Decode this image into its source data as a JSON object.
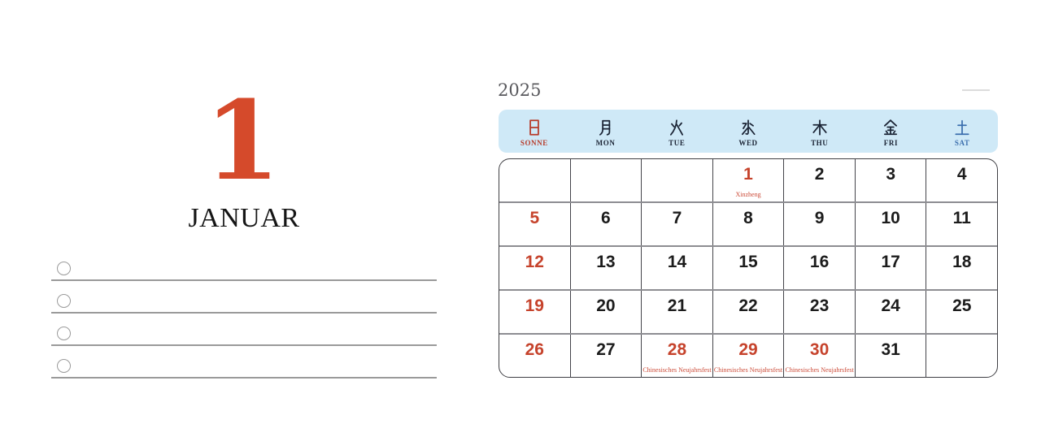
{
  "theme": {
    "accent_red": "#d54a2b",
    "day_red": "#c6432c",
    "holiday_red": "#cc4b38",
    "ink_black": "#1c1c1c",
    "header_navy": "#1b2435",
    "sunday_red": "#b73b2a",
    "saturday_blue": "#3c6fae",
    "band_blue": "#cfe9f7",
    "grid_dark": "#3f3f44",
    "grid_gray": "#8d8d92",
    "checklist_gray": "#9a9a9a",
    "year_gray": "#58585c"
  },
  "left_page": {
    "month_number": "1",
    "month_name": "JANUAR",
    "checklist_items": [
      "",
      "",
      "",
      ""
    ]
  },
  "calendar": {
    "year": "2025",
    "weekdays": [
      {
        "kanji": "日",
        "label": "SONNE"
      },
      {
        "kanji": "月",
        "label": "MON"
      },
      {
        "kanji": "火",
        "label": "TUE"
      },
      {
        "kanji": "水",
        "label": "WED"
      },
      {
        "kanji": "木",
        "label": "THU"
      },
      {
        "kanji": "金",
        "label": "FRI"
      },
      {
        "kanji": "土",
        "label": "SAT"
      }
    ],
    "weeks": [
      [
        {
          "day": ""
        },
        {
          "day": ""
        },
        {
          "day": ""
        },
        {
          "day": "1",
          "holiday": "Xinzheng"
        },
        {
          "day": "2"
        },
        {
          "day": "3"
        },
        {
          "day": "4"
        }
      ],
      [
        {
          "day": "5"
        },
        {
          "day": "6"
        },
        {
          "day": "7"
        },
        {
          "day": "8"
        },
        {
          "day": "9"
        },
        {
          "day": "10"
        },
        {
          "day": "11"
        }
      ],
      [
        {
          "day": "12"
        },
        {
          "day": "13"
        },
        {
          "day": "14"
        },
        {
          "day": "15"
        },
        {
          "day": "16"
        },
        {
          "day": "17"
        },
        {
          "day": "18"
        }
      ],
      [
        {
          "day": "19"
        },
        {
          "day": "20"
        },
        {
          "day": "21"
        },
        {
          "day": "22"
        },
        {
          "day": "23"
        },
        {
          "day": "24"
        },
        {
          "day": "25"
        }
      ],
      [
        {
          "day": "26"
        },
        {
          "day": "27"
        },
        {
          "day": "28",
          "holiday": "Chinesisches Neujahrsfest"
        },
        {
          "day": "29",
          "holiday": "Chinesisches Neujahrsfest"
        },
        {
          "day": "30",
          "holiday": "Chinesisches Neujahrsfest"
        },
        {
          "day": "31"
        },
        {
          "day": ""
        }
      ]
    ]
  }
}
